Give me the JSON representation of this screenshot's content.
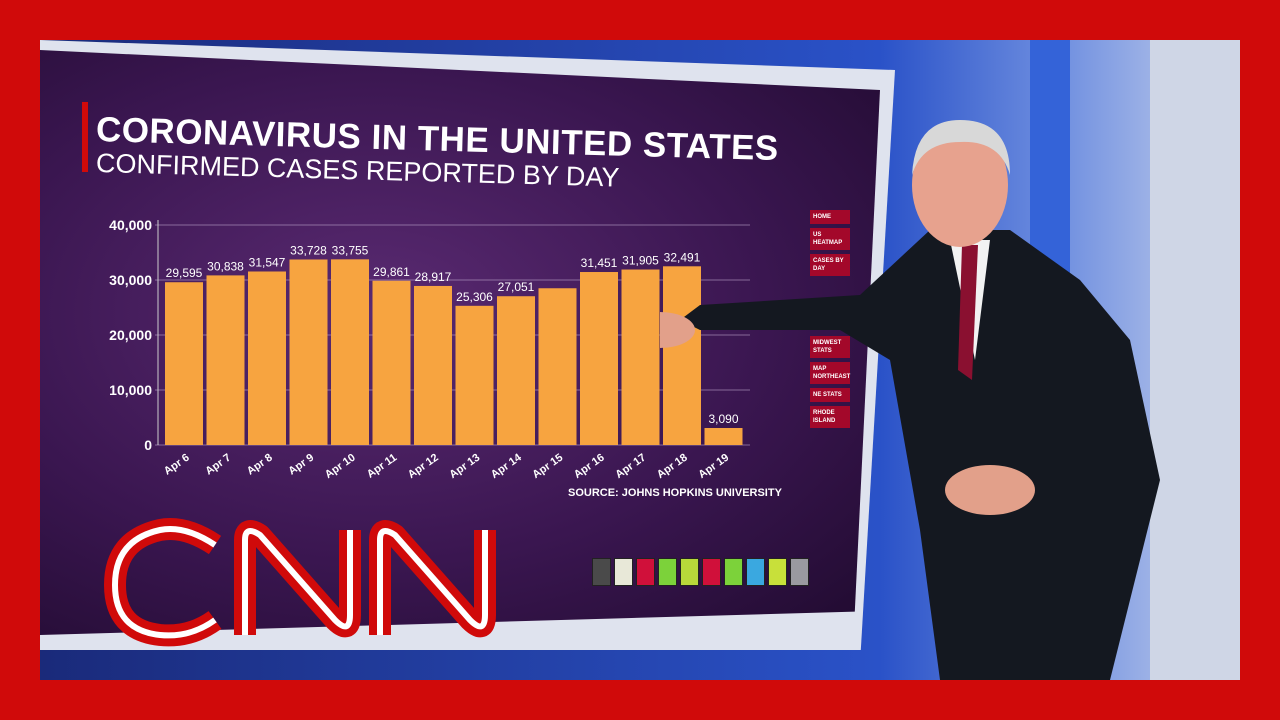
{
  "header": {
    "title": "CORONAVIRUS IN THE UNITED STATES",
    "subtitle": "CONFIRMED CASES REPORTED BY DAY"
  },
  "source": "SOURCE: JOHNS HOPKINS UNIVERSITY",
  "menu": [
    "HOME",
    "US HEATMAP",
    "CASES BY DAY",
    "MIDWEST STATS",
    "MAP NORTHEAST",
    "NE STATS",
    "RHODE ISLAND"
  ],
  "swatches": [
    "#4a4a4a",
    "#e8e8d8",
    "#d0103a",
    "#7cd23a",
    "#b8d83a",
    "#d0103a",
    "#7cd23a",
    "#3aa8e0",
    "#c8e03a",
    "#9a9aa0"
  ],
  "logo": "CNN",
  "colors": {
    "bar": "#f7a440",
    "frame": "#d00a0a"
  },
  "chart_data": {
    "type": "bar",
    "title": "CORONAVIRUS IN THE UNITED STATES",
    "subtitle": "CONFIRMED CASES REPORTED BY DAY",
    "categories": [
      "Apr 6",
      "Apr 7",
      "Apr 8",
      "Apr 9",
      "Apr 10",
      "Apr 11",
      "Apr 12",
      "Apr 13",
      "Apr 14",
      "Apr 15",
      "Apr 16",
      "Apr 17",
      "Apr 18",
      "Apr 19"
    ],
    "values": [
      29595,
      30838,
      31547,
      33728,
      33755,
      29861,
      28917,
      25306,
      27051,
      28500,
      31451,
      31905,
      32491,
      3090
    ],
    "labels": [
      "29,595",
      "30,838",
      "31,547",
      "33,728",
      "33,755",
      "29,861",
      "28,917",
      "25,306",
      "27,051",
      "",
      "31,451",
      "31,905",
      "32,491",
      "3,090"
    ],
    "yticks": [
      "0",
      "10,000",
      "20,000",
      "30,000",
      "40,000"
    ],
    "ylim": [
      0,
      40000
    ],
    "grid": true,
    "xlabel": "",
    "ylabel": ""
  }
}
